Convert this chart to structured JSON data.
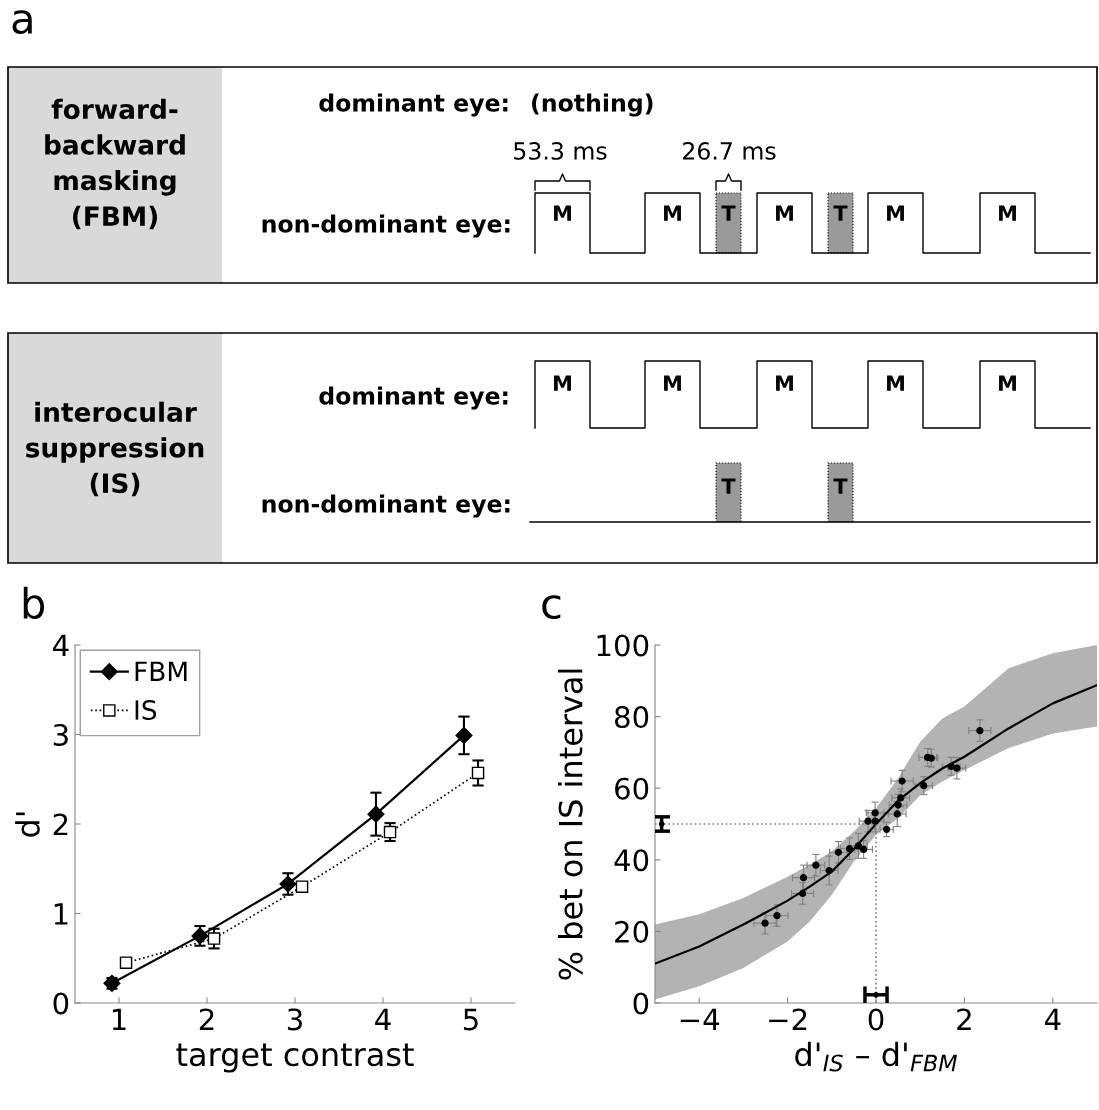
{
  "chart_data": [
    {
      "type": "other",
      "title": "a",
      "annotations": [
        "forward-\nbackward\nmasking\n(FBM)",
        "dominant eye:",
        "(nothing)",
        "53.3 ms",
        "26.7 ms",
        "non-dominant eye:",
        "M",
        "M",
        "T",
        "M",
        "T",
        "M",
        "M",
        "interocular\nsuppression\n(IS)",
        "dominant eye:",
        "M",
        "M",
        "M",
        "M",
        "M",
        "non-dominant eye:",
        "T",
        "T"
      ]
    },
    {
      "type": "line",
      "title": "b",
      "xlabel": "target contrast",
      "ylabel": "d'",
      "xlim": [
        0.5,
        5.5
      ],
      "xticks": [
        1,
        2,
        3,
        4,
        5
      ],
      "ylim": [
        0,
        4
      ],
      "yticks": [
        0,
        1,
        2,
        3,
        4
      ],
      "legend": "top left",
      "series": [
        {
          "name": "FBM",
          "color": "#000000",
          "marker": "diamond",
          "line_style": "solid",
          "x": [
            0.92,
            1.92,
            2.92,
            3.92,
            4.92
          ],
          "values": [
            0.22,
            0.75,
            1.33,
            2.11,
            2.99
          ],
          "errors": [
            0.06,
            0.11,
            0.12,
            0.24,
            0.21
          ]
        },
        {
          "name": "IS",
          "color": "#000000",
          "marker": "square",
          "line_style": "dotted",
          "x": [
            1.08,
            2.08,
            3.08,
            4.08,
            5.08
          ],
          "values": [
            0.45,
            0.72,
            1.3,
            1.91,
            2.57
          ],
          "errors": [
            0.05,
            0.11,
            0.05,
            0.1,
            0.14
          ]
        }
      ]
    },
    {
      "type": "scatter",
      "title": "c",
      "xlabel": "d'$_{IS}$ – d'$_{FBM}$",
      "ylabel": "% bet on IS interval",
      "xlim": [
        -5,
        5
      ],
      "xticks": [
        {
          "value": -4,
          "label": "−4"
        },
        {
          "value": -2,
          "label": "−2"
        },
        0,
        2,
        4
      ],
      "ylim": [
        0,
        100
      ],
      "yticks": [
        0,
        20,
        40,
        60,
        80,
        100
      ],
      "series": [
        {
          "type": "line",
          "color": "#000000",
          "line_style": "solid",
          "marker": "none",
          "x": [
            -5,
            -4,
            -3,
            -2,
            -1.5,
            -1,
            -0.5,
            0,
            0.5,
            1,
            1.5,
            2,
            3,
            4,
            5
          ],
          "values": [
            11,
            15.8,
            21.9,
            28.6,
            32.5,
            36.7,
            43,
            50,
            56.5,
            61.4,
            65.5,
            68.8,
            76.7,
            83.7,
            88.8
          ],
          "lower": [
            1,
            4.7,
            9.8,
            17.2,
            22.8,
            30.2,
            39.5,
            47,
            51.6,
            58,
            61.9,
            65.1,
            71.2,
            75.3,
            77.2
          ],
          "upper": [
            21.9,
            24.8,
            29.3,
            35.3,
            38.6,
            42.3,
            47.9,
            54.4,
            62.8,
            73,
            79.5,
            82.8,
            93.5,
            97.7,
            100
          ]
        },
        {
          "type": "line",
          "color": "#808080",
          "line_style": "dotted",
          "marker": "none",
          "x": [
            -5,
            0,
            0
          ],
          "values": [
            50,
            50,
            0
          ]
        },
        {
          "type": "scatter",
          "color": "#000000",
          "marker": "circle",
          "x": [
            -2.51,
            -2.24,
            -1.66,
            -1.64,
            -1.36,
            -1.06,
            -0.85,
            -0.6,
            -0.4,
            -0.28,
            -0.18,
            -0.02,
            -0.02,
            0.24,
            0.48,
            0.5,
            0.56,
            0.59,
            1.08,
            1.17,
            1.25,
            1.7,
            1.83,
            2.35
          ],
          "values": [
            22.3,
            24.4,
            30.6,
            35,
            38.5,
            37,
            42.1,
            43.1,
            43.9,
            42.9,
            50.8,
            53.1,
            50.8,
            48.5,
            52.8,
            55.3,
            57.3,
            62,
            60.7,
            68.6,
            68.4,
            66.1,
            65.6,
            76.1
          ],
          "errors": [
            3,
            3,
            3,
            3.5,
            3,
            4,
            3,
            3,
            3.5,
            2.5,
            3,
            3,
            3,
            2,
            3.5,
            3,
            2.5,
            3,
            2.5,
            2.5,
            2.5,
            2.5,
            3,
            3
          ],
          "xerrors": [
            0.25,
            0.25,
            0.25,
            0.25,
            0.2,
            0.2,
            0.2,
            0.2,
            0.2,
            0.2,
            0.2,
            0.2,
            0.2,
            0.15,
            0.2,
            0.2,
            0.2,
            0.25,
            0.2,
            0.2,
            0.15,
            0.2,
            0.2,
            0.25
          ]
        },
        {
          "type": "scatter",
          "color": "#000000",
          "marker": "none",
          "x": [
            -4.85,
            0
          ],
          "values": [
            50,
            2.3
          ],
          "errors": [
            [
              48,
              52
            ],
            null
          ],
          "xerrors": [
            null,
            [
              -0.25,
              0.25
            ]
          ]
        }
      ]
    }
  ]
}
